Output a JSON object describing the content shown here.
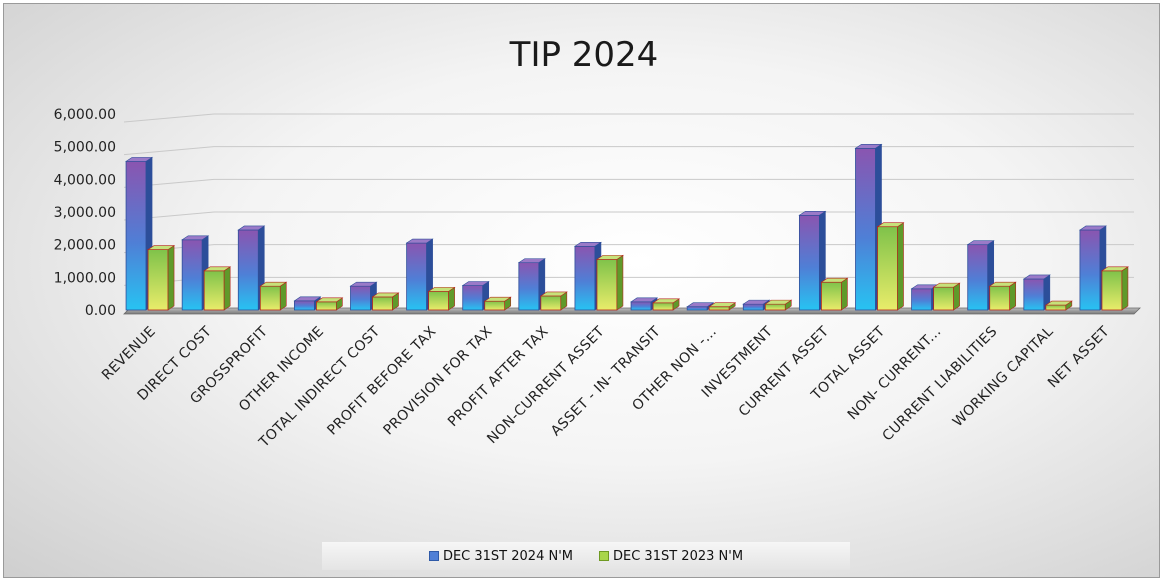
{
  "chart_data": {
    "type": "bar",
    "title": "TIP 2024",
    "categories": [
      "REVENUE",
      "DIRECT COST",
      "GROSSPROFIT",
      "OTHER INCOME",
      "TOTAL INDIRECT COST",
      "PROFIT BEFORE TAX",
      "PROVISION FOR TAX",
      "PROFIT AFTER TAX",
      "NON-CURRENT ASSET",
      "ASSET - IN- TRANSIT",
      "OTHER NON -...",
      "INVESTMENT",
      "CURRENT ASSET",
      "TOTAL ASSET",
      "NON- CURRENT...",
      "CURRENT LIABILITIES",
      "WORKING CAPITAL",
      "NET ASSET"
    ],
    "series": [
      {
        "name": "DEC 31ST 2024 N'M",
        "color": "#4f7fd6",
        "values": [
          4550,
          2150,
          2450,
          280,
          730,
          2050,
          750,
          1450,
          1950,
          250,
          100,
          180,
          2900,
          4950,
          650,
          2000,
          950,
          2450
        ]
      },
      {
        "name": "DEC 31ST 2023 N'M",
        "color": "#a9d64a",
        "values": [
          1850,
          1200,
          730,
          250,
          400,
          570,
          270,
          430,
          1550,
          220,
          100,
          180,
          850,
          2550,
          700,
          730,
          150,
          1200
        ]
      }
    ],
    "yticks": [
      "0.00",
      "1,000.00",
      "2,000.00",
      "3,000.00",
      "4,000.00",
      "5,000.00",
      "6,000.00"
    ],
    "ylim": [
      0,
      6000
    ],
    "grid": true,
    "legend_position": "bottom",
    "xlabel": "",
    "ylabel": ""
  }
}
